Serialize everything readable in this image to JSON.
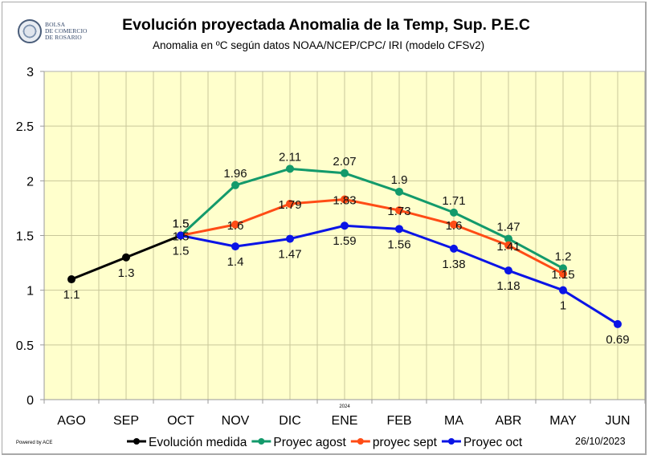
{
  "header": {
    "logo_lines": [
      "BOLSA",
      "DE COMERCIO",
      "DE ROSARIO"
    ],
    "title": "Evolución proyectada Anomalia de la Temp, Sup.  P.E.C",
    "subtitle": "Anomalia en ºC según datos NOAA/NCEP/CPC/ IRI (modelo CFSv2)"
  },
  "footer": {
    "powered_by": "Powered by ACE",
    "date": "26/10/2023"
  },
  "chart_data": {
    "type": "line",
    "title": "Evolución proyectada Anomalia de la Temp, Sup.  P.E.C",
    "subtitle": "Anomalia en ºC según datos NOAA/NCEP/CPC/ IRI (modelo CFSv2)",
    "xlabel": "",
    "ylabel": "",
    "categories": [
      "AGO",
      "SEP",
      "OCT",
      "NOV",
      "DIC",
      "ENE",
      "FEB",
      "MA",
      "ABR",
      "MAY",
      "JUN"
    ],
    "category_annotations": [
      {
        "category": "ENE",
        "text": "2024"
      }
    ],
    "ylim": [
      0,
      3
    ],
    "yticks": [
      0,
      0.5,
      1,
      1.5,
      2,
      2.5,
      3
    ],
    "ytick_labels": [
      "0",
      "0.5",
      "1",
      "1.5",
      "2",
      "2.5",
      "3"
    ],
    "grid": true,
    "legend_position": "bottom",
    "background": "#ffffcc",
    "series": [
      {
        "name": "Evolución medida",
        "color": "#000000",
        "values": [
          1.1,
          1.3,
          1.5,
          null,
          null,
          null,
          null,
          null,
          null,
          null,
          null
        ],
        "labels": [
          "1.1",
          "1.3",
          "1.5",
          null,
          null,
          null,
          null,
          null,
          null,
          null,
          null
        ],
        "label_pos": [
          "below",
          "below",
          "above",
          null,
          null,
          null,
          null,
          null,
          null,
          null,
          null
        ]
      },
      {
        "name": "Proyec agost",
        "color": "#139a6b",
        "values": [
          null,
          null,
          1.5,
          1.96,
          2.11,
          2.07,
          1.9,
          1.71,
          1.47,
          1.2,
          null
        ],
        "labels": [
          null,
          null,
          "1.5",
          "1.96",
          "2.11",
          "2.07",
          "1.9",
          "1.71",
          "1.47",
          "1.2",
          null
        ],
        "label_pos": [
          null,
          null,
          "above",
          "above",
          "above",
          "above",
          "above",
          "above",
          "above",
          "above",
          null
        ]
      },
      {
        "name": "proyec sept",
        "color": "#ff4c16",
        "values": [
          null,
          null,
          1.5,
          1.6,
          1.79,
          1.83,
          1.73,
          1.6,
          1.41,
          1.15,
          null
        ],
        "labels": [
          null,
          null,
          "1.5",
          "1.6",
          "1.79",
          "1.83",
          "1.73",
          "1.6",
          "1.41",
          "1.15",
          null
        ],
        "label_pos": [
          null,
          null,
          "center",
          "center",
          "center",
          "center",
          "center",
          "center",
          "center",
          "center",
          null
        ]
      },
      {
        "name": "Proyec oct",
        "color": "#0a14e6",
        "values": [
          null,
          null,
          1.5,
          1.4,
          1.47,
          1.59,
          1.56,
          1.38,
          1.18,
          1.0,
          0.69
        ],
        "labels": [
          null,
          null,
          "1.5",
          "1.4",
          "1.47",
          "1.59",
          "1.56",
          "1.38",
          "1.18",
          "1",
          "0.69"
        ],
        "label_pos": [
          null,
          null,
          "below",
          "below",
          "below",
          "below",
          "below",
          "below",
          "below",
          "below",
          "below"
        ]
      }
    ]
  }
}
